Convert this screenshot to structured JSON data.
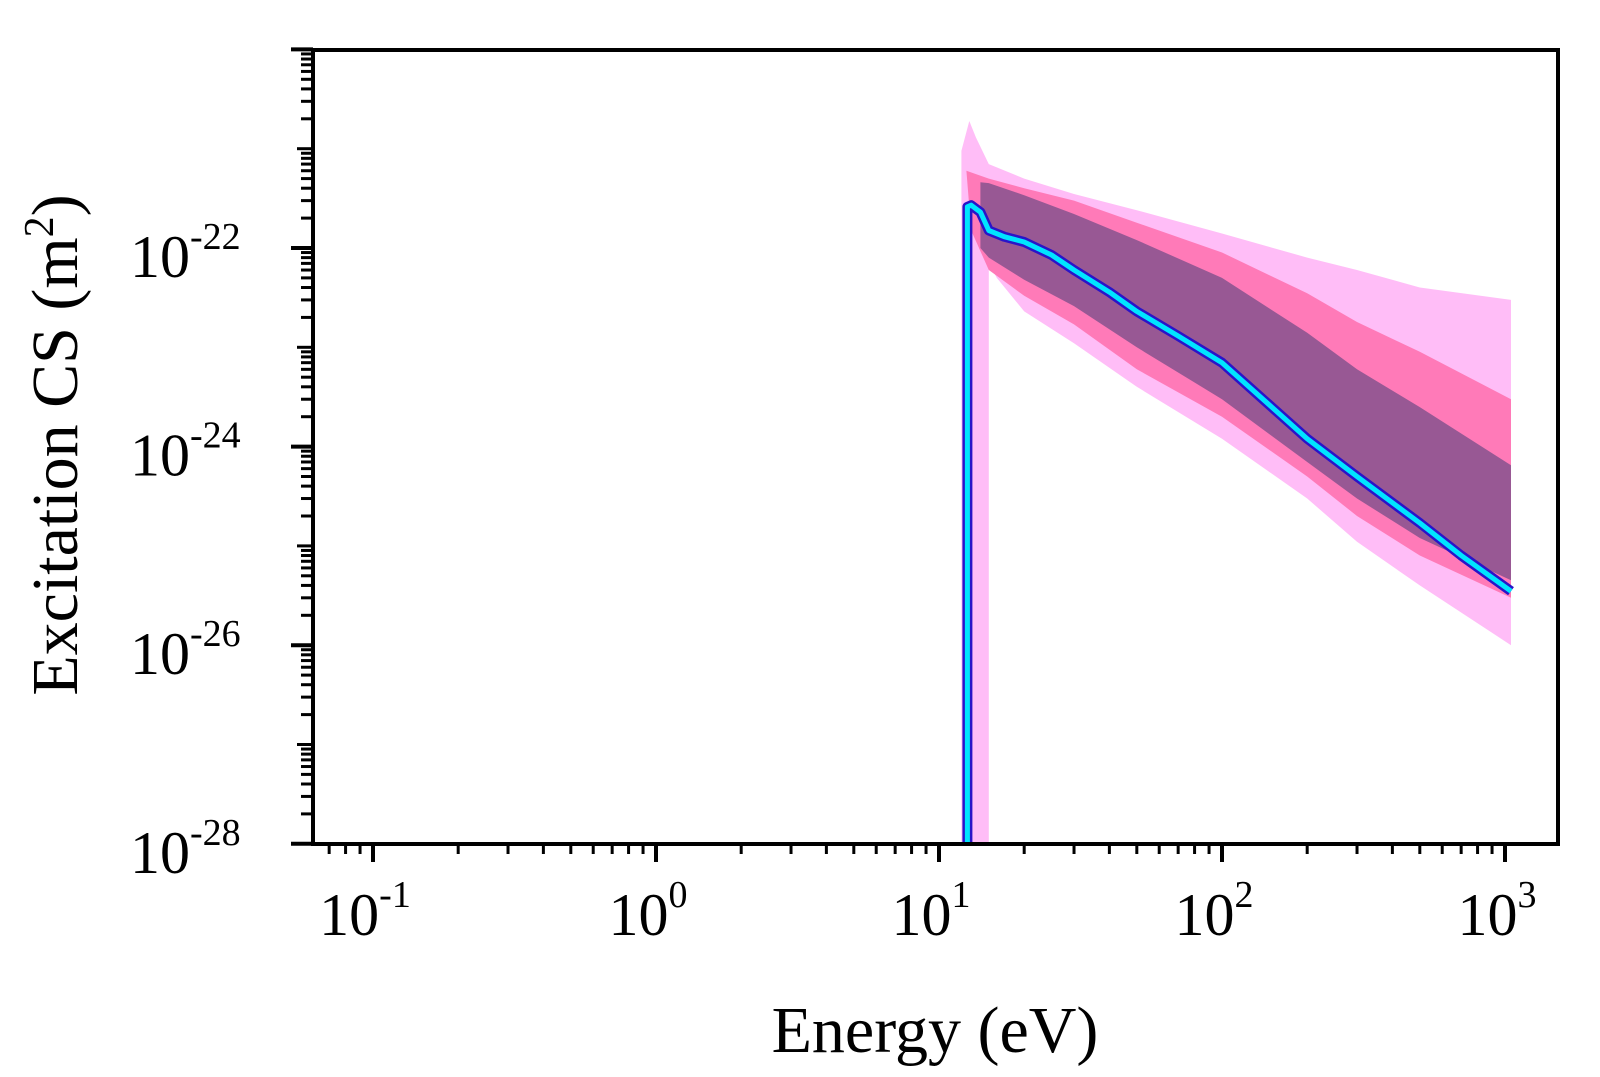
{
  "chart_data": {
    "type": "area",
    "title": "",
    "xlabel": "Energy (eV)",
    "ylabel_main": "Excitation CS (m",
    "ylabel_sup": "2",
    "ylabel_close": ")",
    "xscale": "log",
    "yscale": "log",
    "xlim": [
      0.065,
      1600
    ],
    "ylim": [
      1e-28,
      1e-20
    ],
    "x_ticks": [
      {
        "value": 0.1,
        "base": "10",
        "exp": "-1"
      },
      {
        "value": 1,
        "base": "10",
        "exp": "0"
      },
      {
        "value": 10,
        "base": "10",
        "exp": "1"
      },
      {
        "value": 100,
        "base": "10",
        "exp": "2"
      },
      {
        "value": 1000,
        "base": "10",
        "exp": "3"
      }
    ],
    "y_ticks": [
      {
        "value": 1e-22,
        "base": "10",
        "exp": "-22"
      },
      {
        "value": 1e-24,
        "base": "10",
        "exp": "-24"
      },
      {
        "value": 1e-26,
        "base": "10",
        "exp": "-26"
      },
      {
        "value": 1e-28,
        "base": "10",
        "exp": "-28"
      }
    ],
    "grid": false,
    "legend": "none",
    "series": [
      {
        "name": "outer band",
        "color": "#ffbdf7",
        "upper": [
          [
            12.0,
            1e-28
          ],
          [
            12.0,
            9.5e-22
          ],
          [
            12.8,
            1.9e-21
          ],
          [
            13.5,
            1.3e-21
          ],
          [
            15,
            7e-22
          ],
          [
            20,
            5e-22
          ],
          [
            30,
            3.5e-22
          ],
          [
            50,
            2.4e-22
          ],
          [
            100,
            1.4e-22
          ],
          [
            200,
            8e-23
          ],
          [
            300,
            6e-23
          ],
          [
            500,
            4e-23
          ],
          [
            1050,
            3e-23
          ]
        ],
        "lower": [
          [
            1050,
            1e-26
          ],
          [
            500,
            4e-26
          ],
          [
            300,
            1.1e-25
          ],
          [
            200,
            3e-25
          ],
          [
            100,
            1.2e-24
          ],
          [
            50,
            4e-24
          ],
          [
            30,
            1.1e-23
          ],
          [
            20,
            2.3e-23
          ],
          [
            16,
            5e-23
          ],
          [
            15,
            7e-23
          ],
          [
            15,
            1e-28
          ]
        ]
      },
      {
        "name": "middle band",
        "color": "#ff7ab8",
        "upper": [
          [
            12.5,
            6e-22
          ],
          [
            15,
            5e-22
          ],
          [
            20,
            4e-22
          ],
          [
            30,
            3e-22
          ],
          [
            50,
            1.8e-22
          ],
          [
            100,
            9e-23
          ],
          [
            200,
            3.5e-23
          ],
          [
            300,
            1.8e-23
          ],
          [
            500,
            9e-24
          ],
          [
            1050,
            3e-24
          ]
        ],
        "lower": [
          [
            1050,
            3e-26
          ],
          [
            500,
            8e-26
          ],
          [
            300,
            2e-25
          ],
          [
            200,
            5e-25
          ],
          [
            100,
            2e-24
          ],
          [
            50,
            6e-24
          ],
          [
            30,
            1.7e-23
          ],
          [
            20,
            3.3e-23
          ],
          [
            15,
            6e-23
          ],
          [
            13,
            1.5e-22
          ]
        ]
      },
      {
        "name": "inner band",
        "color": "#985894",
        "upper": [
          [
            14,
            4.6e-22
          ],
          [
            15,
            4.5e-22
          ],
          [
            20,
            3.4e-22
          ],
          [
            30,
            2.2e-22
          ],
          [
            50,
            1.2e-22
          ],
          [
            100,
            5e-23
          ],
          [
            200,
            1.4e-23
          ],
          [
            300,
            6e-24
          ],
          [
            500,
            2.5e-24
          ],
          [
            1050,
            6.5e-25
          ]
        ],
        "lower": [
          [
            1050,
            4.5e-26
          ],
          [
            500,
            1.2e-25
          ],
          [
            300,
            3e-25
          ],
          [
            200,
            7e-25
          ],
          [
            100,
            3e-24
          ],
          [
            50,
            1e-23
          ],
          [
            30,
            2.6e-23
          ],
          [
            20,
            4.8e-23
          ],
          [
            15,
            8e-23
          ],
          [
            14,
            1e-22
          ]
        ]
      },
      {
        "name": "central line",
        "color": "#00e5ff",
        "outline_color": "#2a14c8",
        "points": [
          [
            12.6,
            1e-28
          ],
          [
            12.6,
            2.6e-22
          ],
          [
            13.0,
            2.7e-22
          ],
          [
            14.0,
            2.3e-22
          ],
          [
            15.0,
            1.5e-22
          ],
          [
            17.0,
            1.3e-22
          ],
          [
            20.0,
            1.15e-22
          ],
          [
            25.0,
            8.5e-23
          ],
          [
            30.0,
            6e-23
          ],
          [
            40.0,
            3.6e-23
          ],
          [
            50.0,
            2.3e-23
          ],
          [
            70.0,
            1.3e-23
          ],
          [
            100.0,
            7e-24
          ],
          [
            150.0,
            2.5e-24
          ],
          [
            200.0,
            1.2e-24
          ],
          [
            300.0,
            5e-25
          ],
          [
            500.0,
            1.7e-25
          ],
          [
            700.0,
            8e-26
          ],
          [
            1050.0,
            3.5e-26
          ]
        ]
      }
    ]
  }
}
